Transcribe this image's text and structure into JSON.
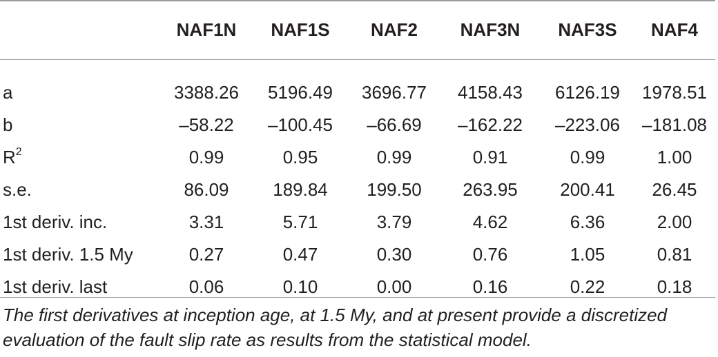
{
  "table": {
    "columns": [
      "",
      "NAF1N",
      "NAF1S",
      "NAF2",
      "NAF3N",
      "NAF3S",
      "NAF4"
    ],
    "rows": [
      {
        "label": "a",
        "values": [
          "3388.26",
          "5196.49",
          "3696.77",
          "4158.43",
          "6126.19",
          "1978.51"
        ]
      },
      {
        "label": "b",
        "values": [
          "–58.22",
          "–100.45",
          "–66.69",
          "–162.22",
          "–223.06",
          "–181.08"
        ]
      },
      {
        "label": "R",
        "sup": "2",
        "values": [
          "0.99",
          "0.95",
          "0.99",
          "0.91",
          "0.99",
          "1.00"
        ]
      },
      {
        "label": "s.e.",
        "values": [
          "86.09",
          "189.84",
          "199.50",
          "263.95",
          "200.41",
          "26.45"
        ]
      },
      {
        "label": "1st deriv. inc.",
        "values": [
          "3.31",
          "5.71",
          "3.79",
          "4.62",
          "6.36",
          "2.00"
        ]
      },
      {
        "label": "1st deriv. 1.5 My",
        "values": [
          "0.27",
          "0.47",
          "0.30",
          "0.76",
          "1.05",
          "0.81"
        ]
      },
      {
        "label": "1st deriv. last",
        "values": [
          "0.06",
          "0.10",
          "0.00",
          "0.16",
          "0.22",
          "0.18"
        ]
      }
    ]
  },
  "caption": "The first derivatives at inception age, at 1.5 My, and at present provide a discretized evaluation of the fault slip rate as results from the statistical model."
}
